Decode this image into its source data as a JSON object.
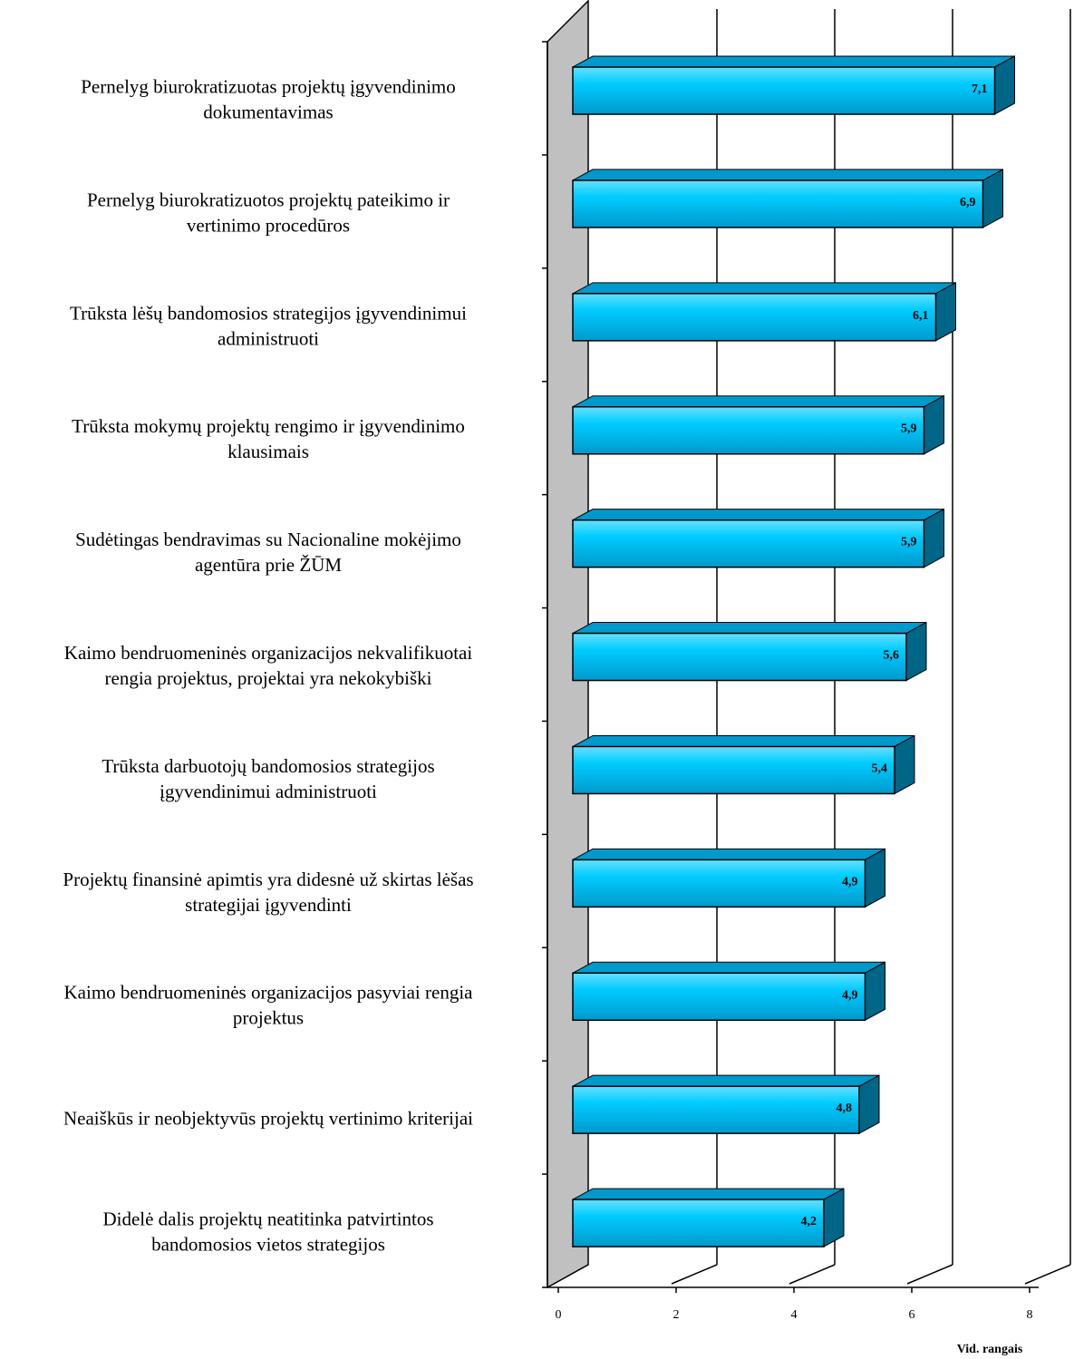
{
  "chart_data": {
    "type": "bar",
    "orientation": "horizontal",
    "categories": [
      [
        "Pernelyg biurokratizuotas projektų įgyvendinimo",
        "dokumentavimas"
      ],
      [
        "Pernelyg biurokratizuotos projektų pateikimo ir",
        "vertinimo procedūros"
      ],
      [
        "Trūksta lėšų bandomosios strategijos įgyvendinimui",
        "administruoti"
      ],
      [
        "Trūksta mokymų projektų rengimo ir įgyvendinimo",
        "klausimais"
      ],
      [
        "Sudėtingas bendravimas su Nacionaline mokėjimo",
        "agentūra prie ŽŪM"
      ],
      [
        "Kaimo bendruomeninės organizacijos nekvalifikuotai",
        "rengia projektus, projektai yra nekokybiški"
      ],
      [
        "Trūksta darbuotojų bandomosios strategijos",
        "įgyvendinimui administruoti"
      ],
      [
        "Projektų finansinė apimtis yra didesnė už skirtas lėšas",
        "strategijai įgyvendinti"
      ],
      [
        "Kaimo bendruomeninės organizacijos pasyviai rengia",
        "projektus"
      ],
      [
        "Neaiškūs ir neobjektyvūs projektų vertinimo kriterijai"
      ],
      [
        "Didelė dalis projektų neatitinka patvirtintos",
        "bandomosios vietos strategijos"
      ]
    ],
    "values": [
      7.1,
      6.9,
      6.1,
      5.9,
      5.9,
      5.6,
      5.4,
      4.9,
      4.9,
      4.8,
      4.2
    ],
    "value_labels": [
      "7,1",
      "6,9",
      "6,1",
      "5,9",
      "5,9",
      "5,6",
      "5,4",
      "4,9",
      "4,9",
      "4,8",
      "4,2"
    ],
    "xlim": [
      0,
      8
    ],
    "xticks": [
      "0",
      "2",
      "4",
      "6",
      "8"
    ],
    "xlabel": "Vid. rangais",
    "grid": true,
    "legend": "none",
    "colors": {
      "bar_front": "#00ccff",
      "bar_top": "#0099cc",
      "bar_side": "#006688",
      "wall": "#c0c0c0",
      "gridline": "#000000"
    }
  }
}
